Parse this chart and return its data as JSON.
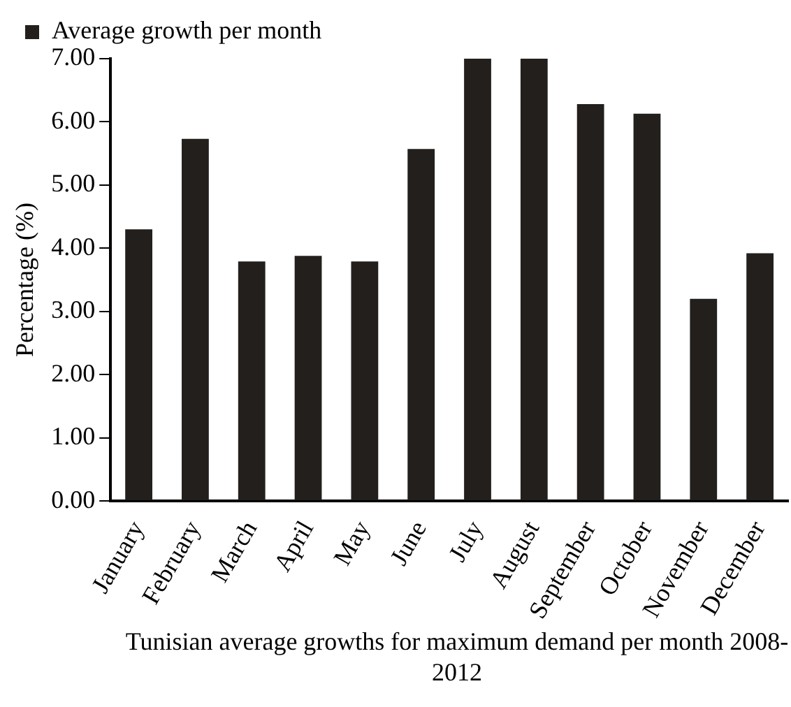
{
  "chart_data": {
    "type": "bar",
    "xlabel": "Tunisian average growths for maximum demand per month 2008-2012",
    "ylabel": "Percentage (%)",
    "categories": [
      "January",
      "February",
      "March",
      "April",
      "May",
      "June",
      "July",
      "August",
      "September",
      "October",
      "November",
      "December"
    ],
    "series": [
      {
        "name": "Average growth per month",
        "color": "#231f1c",
        "values": [
          4.3,
          5.73,
          3.79,
          3.88,
          3.79,
          5.57,
          7.0,
          7.0,
          6.28,
          6.13,
          3.2,
          3.92
        ]
      }
    ],
    "ylim": [
      0,
      7
    ],
    "yticks": [
      {
        "value": 0,
        "label": "0.00"
      },
      {
        "value": 1,
        "label": "1.00"
      },
      {
        "value": 2,
        "label": "2.00"
      },
      {
        "value": 3,
        "label": "3.00"
      },
      {
        "value": 4,
        "label": "4.00"
      },
      {
        "value": 5,
        "label": "5.00"
      },
      {
        "value": 6,
        "label": "6.00"
      },
      {
        "value": 7,
        "label": "7.00"
      }
    ],
    "grid": false,
    "legend": "top left"
  }
}
